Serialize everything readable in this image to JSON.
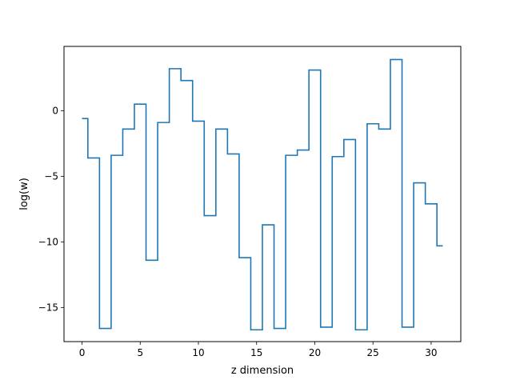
{
  "chart_data": {
    "type": "line",
    "drawstyle": "steps-mid",
    "title": "",
    "xlabel": "z dimension",
    "ylabel": "log(w)",
    "xlim": [
      -1.55,
      32.55
    ],
    "ylim": [
      -17.6,
      4.9
    ],
    "xticks": [
      0,
      5,
      10,
      15,
      20,
      25,
      30
    ],
    "yticks": [
      0,
      -5,
      -10,
      -15
    ],
    "grid": false,
    "legend": "none",
    "series": [
      {
        "color": "#1f77b4",
        "x": [
          0,
          1,
          2,
          3,
          4,
          5,
          6,
          7,
          8,
          9,
          10,
          11,
          12,
          13,
          14,
          15,
          16,
          17,
          18,
          19,
          20,
          21,
          22,
          23,
          24,
          25,
          26,
          27,
          28,
          29,
          30,
          31
        ],
        "y": [
          -0.6,
          -3.6,
          -16.6,
          -3.4,
          -1.4,
          0.5,
          -11.4,
          -0.9,
          3.2,
          2.3,
          -0.8,
          -8.0,
          -1.4,
          -3.3,
          -11.2,
          -16.7,
          -8.7,
          -16.6,
          -3.4,
          -3.0,
          3.1,
          -16.5,
          -3.5,
          -2.2,
          -16.7,
          -1.0,
          -1.4,
          3.9,
          -16.5,
          -5.5,
          -7.1,
          -10.3
        ]
      }
    ]
  }
}
